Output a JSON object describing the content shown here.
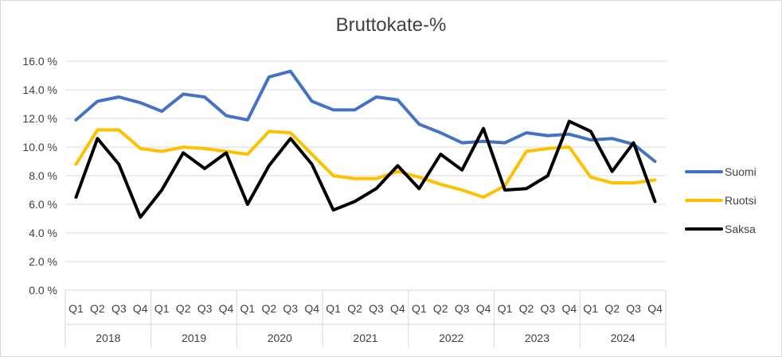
{
  "chart_data": {
    "type": "line",
    "title": "Bruttokate-%",
    "xlabel": "",
    "ylabel": "",
    "ylim": [
      0,
      16
    ],
    "y_ticks": [
      "0.0 %",
      "2.0 %",
      "4.0 %",
      "6.0 %",
      "8.0 %",
      "10.0 %",
      "12.0 %",
      "14.0 %",
      "16.0 %"
    ],
    "quarters": [
      "Q1",
      "Q2",
      "Q3",
      "Q4"
    ],
    "years": [
      "2018",
      "2019",
      "2020",
      "2021",
      "2022",
      "2023",
      "2024"
    ],
    "categories": [
      "2018 Q1",
      "2018 Q2",
      "2018 Q3",
      "2018 Q4",
      "2019 Q1",
      "2019 Q2",
      "2019 Q3",
      "2019 Q4",
      "2020 Q1",
      "2020 Q2",
      "2020 Q3",
      "2020 Q4",
      "2021 Q1",
      "2021 Q2",
      "2021 Q3",
      "2021 Q4",
      "2022 Q1",
      "2022 Q2",
      "2022 Q3",
      "2022 Q4",
      "2023 Q1",
      "2023 Q2",
      "2023 Q3",
      "2023 Q4",
      "2024 Q1",
      "2024 Q2",
      "2024 Q3",
      "2024 Q4"
    ],
    "grid": true,
    "legend_position": "right",
    "series": [
      {
        "name": "Suomi",
        "color": "#4472c4",
        "values": [
          11.9,
          13.2,
          13.5,
          13.1,
          12.5,
          13.7,
          13.5,
          12.2,
          11.9,
          14.9,
          15.3,
          13.2,
          12.6,
          12.6,
          13.5,
          13.3,
          11.6,
          11.0,
          10.3,
          10.4,
          10.3,
          11.0,
          10.8,
          10.9,
          10.5,
          10.6,
          10.2,
          9.0
        ]
      },
      {
        "name": "Ruotsi",
        "color": "#ffc000",
        "values": [
          8.8,
          11.2,
          11.2,
          9.9,
          9.7,
          10.0,
          9.9,
          9.7,
          9.5,
          11.1,
          11.0,
          9.5,
          8.0,
          7.8,
          7.8,
          8.3,
          7.9,
          7.4,
          7.0,
          6.5,
          7.3,
          9.7,
          9.9,
          10.0,
          7.9,
          7.5,
          7.5,
          7.7
        ]
      },
      {
        "name": "Saksa",
        "color": "#000000",
        "values": [
          6.5,
          10.6,
          8.8,
          5.1,
          7.0,
          9.6,
          8.5,
          9.6,
          6.0,
          8.7,
          10.6,
          8.8,
          5.6,
          6.2,
          7.1,
          8.7,
          7.1,
          9.5,
          8.4,
          11.3,
          7.0,
          7.1,
          8.0,
          11.8,
          11.1,
          8.3,
          10.3,
          6.2
        ]
      }
    ]
  }
}
